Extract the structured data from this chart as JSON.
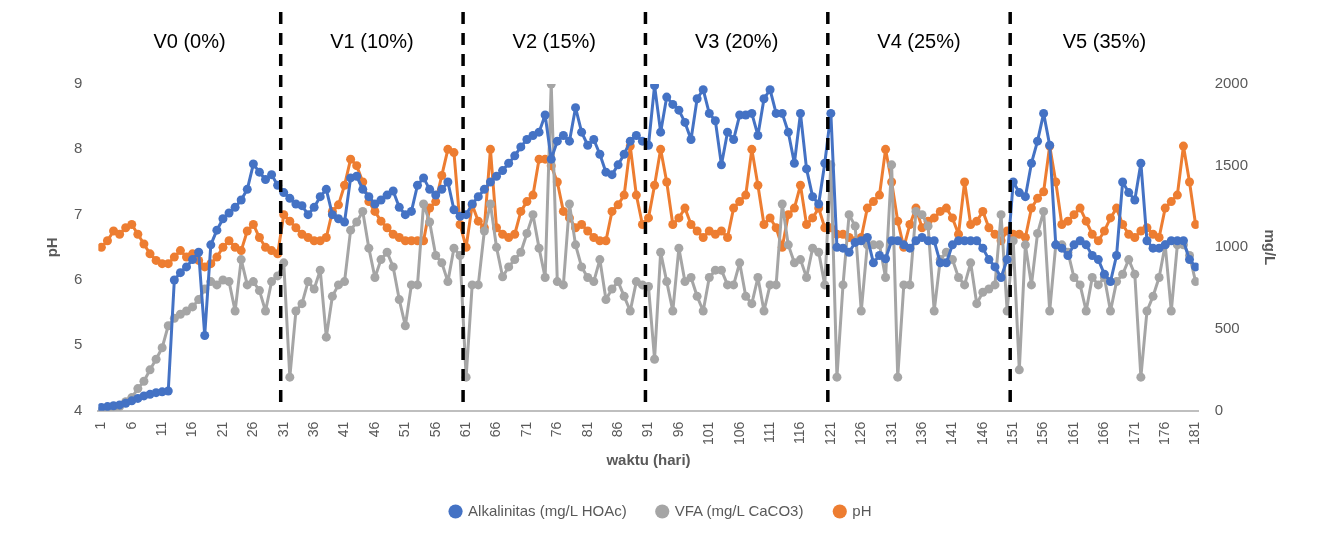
{
  "chart_data": {
    "type": "line",
    "xlabel": "waktu (hari)",
    "ylabel": "pH",
    "y2label": "mg/L",
    "x": [
      1,
      2,
      3,
      4,
      5,
      6,
      7,
      8,
      9,
      10,
      11,
      12,
      13,
      14,
      15,
      16,
      17,
      18,
      19,
      20,
      21,
      22,
      23,
      24,
      25,
      26,
      27,
      28,
      29,
      30,
      31,
      32,
      33,
      34,
      35,
      36,
      37,
      38,
      39,
      40,
      41,
      42,
      43,
      44,
      45,
      46,
      47,
      48,
      49,
      50,
      51,
      52,
      53,
      54,
      55,
      56,
      57,
      58,
      59,
      60,
      61,
      62,
      63,
      64,
      65,
      66,
      67,
      68,
      69,
      70,
      71,
      72,
      73,
      74,
      75,
      76,
      77,
      78,
      79,
      80,
      81,
      82,
      83,
      84,
      85,
      86,
      87,
      88,
      89,
      90,
      91,
      92,
      93,
      94,
      95,
      96,
      97,
      98,
      99,
      100,
      101,
      102,
      103,
      104,
      105,
      106,
      107,
      108,
      109,
      110,
      111,
      112,
      113,
      114,
      115,
      116,
      117,
      118,
      119,
      120,
      121,
      122,
      123,
      124,
      125,
      126,
      127,
      128,
      129,
      130,
      131,
      132,
      133,
      134,
      135,
      136,
      137,
      138,
      139,
      140,
      141,
      142,
      143,
      144,
      145,
      146,
      147,
      148,
      149,
      150,
      151,
      152,
      153,
      154,
      155,
      156,
      157,
      158,
      159,
      160,
      161,
      162,
      163,
      164,
      165,
      166,
      167,
      168,
      169,
      170,
      171,
      172,
      173,
      174,
      175,
      176,
      177,
      178,
      179,
      180,
      181
    ],
    "xlim": [
      0.5,
      181.5
    ],
    "xticks": [
      1,
      6,
      11,
      16,
      21,
      26,
      31,
      36,
      41,
      46,
      51,
      56,
      61,
      66,
      71,
      76,
      81,
      86,
      91,
      96,
      101,
      106,
      111,
      116,
      121,
      126,
      131,
      136,
      141,
      146,
      151,
      156,
      161,
      166,
      171,
      176,
      181
    ],
    "ylim": [
      4,
      9
    ],
    "yticks": [
      4,
      5,
      6,
      7,
      8,
      9
    ],
    "y2lim": [
      0,
      2000
    ],
    "y2ticks": [
      0,
      500,
      1000,
      1500,
      2000
    ],
    "grid": false,
    "legend": "bottom",
    "marker": "circle",
    "line_style": "solid",
    "ref_lines": [
      {
        "axis": "x",
        "value": 30.5,
        "color": "#000000",
        "line_style": "dashed"
      },
      {
        "axis": "x",
        "value": 60.5,
        "color": "#000000",
        "line_style": "dashed"
      },
      {
        "axis": "x",
        "value": 90.5,
        "color": "#000000",
        "line_style": "dashed"
      },
      {
        "axis": "x",
        "value": 120.5,
        "color": "#000000",
        "line_style": "dashed"
      },
      {
        "axis": "x",
        "value": 150.5,
        "color": "#000000",
        "line_style": "dashed"
      }
    ],
    "annotations": [
      "V0 (0%)",
      "V1 (10%)",
      "V2 (15%)",
      "V3 (20%)",
      "V4 (25%)",
      "V5 (35%)"
    ],
    "series": [
      {
        "name": "Alkalinitas (mg/L HOAc)",
        "color": "#4472c4",
        "axis": "y2",
        "values": [
          20,
          25,
          30,
          35,
          45,
          60,
          75,
          90,
          100,
          110,
          115,
          120,
          800,
          845,
          880,
          925,
          970,
          460,
          1015,
          1105,
          1175,
          1210,
          1245,
          1290,
          1355,
          1510,
          1460,
          1415,
          1445,
          1380,
          1335,
          1300,
          1265,
          1255,
          1200,
          1245,
          1310,
          1355,
          1200,
          1175,
          1155,
          1425,
          1435,
          1355,
          1310,
          1265,
          1290,
          1320,
          1345,
          1245,
          1200,
          1220,
          1380,
          1425,
          1355,
          1320,
          1355,
          1400,
          1230,
          1190,
          1200,
          1265,
          1310,
          1355,
          1400,
          1435,
          1470,
          1515,
          1560,
          1615,
          1660,
          1685,
          1705,
          1810,
          1540,
          1650,
          1685,
          1650,
          1855,
          1705,
          1625,
          1660,
          1570,
          1460,
          1445,
          1505,
          1570,
          1650,
          1685,
          1650,
          1625,
          1990,
          1705,
          1920,
          1875,
          1840,
          1765,
          1660,
          1910,
          1965,
          1820,
          1775,
          1505,
          1705,
          1660,
          1810,
          1810,
          1820,
          1685,
          1910,
          1965,
          1820,
          1820,
          1705,
          1515,
          1820,
          1480,
          1310,
          1265,
          1515,
          1820,
          1000,
          995,
          970,
          1030,
          1040,
          1060,
          905,
          950,
          930,
          1040,
          1040,
          1015,
          995,
          1040,
          1060,
          1040,
          1040,
          905,
          905,
          1015,
          1040,
          1040,
          1040,
          1040,
          995,
          925,
          880,
          815,
          925,
          1400,
          1335,
          1310,
          1515,
          1650,
          1820,
          1625,
          1015,
          995,
          950,
          1015,
          1040,
          1015,
          950,
          925,
          835,
          790,
          950,
          1400,
          1335,
          1290,
          1515,
          1040,
          995,
          995,
          1015,
          1040,
          1040,
          1040,
          925,
          880
        ]
      },
      {
        "name": "VFA (mg/L CaCO3)",
        "color": "#a5a5a5",
        "axis": "y2",
        "values": [
          0,
          0,
          10,
          25,
          55,
          80,
          135,
          180,
          250,
          315,
          385,
          520,
          565,
          590,
          610,
          635,
          680,
          745,
          790,
          770,
          800,
          790,
          610,
          925,
          770,
          790,
          735,
          610,
          790,
          825,
          905,
          205,
          610,
          655,
          790,
          745,
          860,
          450,
          700,
          770,
          790,
          1105,
          1155,
          1220,
          995,
          815,
          925,
          970,
          880,
          680,
          520,
          770,
          770,
          1265,
          1155,
          950,
          905,
          790,
          995,
          950,
          205,
          770,
          770,
          1100,
          1265,
          1000,
          820,
          880,
          925,
          970,
          1085,
          1200,
          995,
          815,
          2000,
          790,
          770,
          1265,
          1015,
          880,
          815,
          790,
          925,
          680,
          745,
          790,
          700,
          610,
          790,
          770,
          760,
          315,
          970,
          790,
          610,
          995,
          790,
          815,
          700,
          610,
          815,
          860,
          860,
          770,
          770,
          905,
          700,
          655,
          815,
          610,
          770,
          770,
          1265,
          1015,
          905,
          925,
          815,
          995,
          970,
          770,
          1505,
          205,
          770,
          1200,
          1130,
          610,
          1015,
          1015,
          1015,
          815,
          1505,
          205,
          770,
          770,
          1220,
          1200,
          1130,
          610,
          925,
          970,
          925,
          815,
          770,
          905,
          655,
          725,
          745,
          770,
          1200,
          610,
          1040,
          250,
          1015,
          770,
          1085,
          1220,
          610,
          1015,
          1015,
          970,
          815,
          770,
          610,
          815,
          770,
          815,
          610,
          790,
          835,
          925,
          835,
          205,
          610,
          700,
          815,
          1015,
          610,
          1015,
          1015,
          950,
          790
        ]
      },
      {
        "name": "pH",
        "color": "#ed7d31",
        "axis": "y",
        "values": [
          6.5,
          6.6,
          6.75,
          6.7,
          6.8,
          6.85,
          6.7,
          6.55,
          6.4,
          6.3,
          6.25,
          6.25,
          6.35,
          6.45,
          6.35,
          6.4,
          6.3,
          6.2,
          6.25,
          6.35,
          6.5,
          6.6,
          6.5,
          6.45,
          6.75,
          6.85,
          6.65,
          6.5,
          6.45,
          6.4,
          7.0,
          6.9,
          6.8,
          6.7,
          6.65,
          6.6,
          6.6,
          6.65,
          7.05,
          7.15,
          7.45,
          7.85,
          7.75,
          7.5,
          7.2,
          7.05,
          6.9,
          6.8,
          6.7,
          6.65,
          6.6,
          6.6,
          6.6,
          6.6,
          7.1,
          7.2,
          7.6,
          8.0,
          7.95,
          6.85,
          6.5,
          7.15,
          6.9,
          6.8,
          8.0,
          6.8,
          6.7,
          6.65,
          6.7,
          7.05,
          7.2,
          7.3,
          7.85,
          7.85,
          7.75,
          7.5,
          7.05,
          6.95,
          6.8,
          6.85,
          6.75,
          6.65,
          6.6,
          6.6,
          7.05,
          7.15,
          7.3,
          8.05,
          7.3,
          6.85,
          6.95,
          7.45,
          8.0,
          7.5,
          6.85,
          6.95,
          7.1,
          6.85,
          6.75,
          6.65,
          6.75,
          6.7,
          6.75,
          6.65,
          7.1,
          7.2,
          7.3,
          8.0,
          7.45,
          6.85,
          6.95,
          6.8,
          6.5,
          7.0,
          7.1,
          7.45,
          6.85,
          6.95,
          7.1,
          6.8,
          6.8,
          6.7,
          6.7,
          6.65,
          6.6,
          6.65,
          7.1,
          7.2,
          7.3,
          8.0,
          7.5,
          6.9,
          6.5,
          6.85,
          7.1,
          6.8,
          6.9,
          6.95,
          7.05,
          7.1,
          6.95,
          6.7,
          7.5,
          6.85,
          6.9,
          7.05,
          6.8,
          6.7,
          6.6,
          6.75,
          6.7,
          6.7,
          6.65,
          7.1,
          7.25,
          7.35,
          8.05,
          7.5,
          6.85,
          6.9,
          7.0,
          7.1,
          6.9,
          6.7,
          6.6,
          6.75,
          6.95,
          7.1,
          6.85,
          6.7,
          6.65,
          6.75,
          6.8,
          6.7,
          6.65,
          7.1,
          7.2,
          7.3,
          8.05,
          7.5,
          6.85
        ]
      }
    ]
  }
}
